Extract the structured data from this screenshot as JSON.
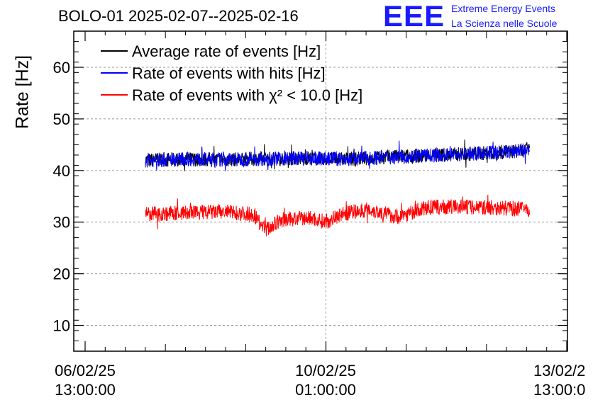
{
  "header": {
    "title": "BOLO-01 2025-02-07--2025-02-16",
    "logo_text": "EEE",
    "logo_line1": "Extreme Energy Events",
    "logo_line2": "La Scienza nelle Scuole"
  },
  "colors": {
    "average": "#000000",
    "hits": "#0000ff",
    "chi2": "#ff0000",
    "logo": "#1a1aff"
  },
  "chart_data": {
    "type": "line",
    "title": "BOLO-01 2025-02-07--2025-02-16",
    "ylabel": "Rate [Hz]",
    "xlabel": "",
    "ylim": [
      5,
      67
    ],
    "yticks": [
      10,
      20,
      30,
      40,
      50,
      60
    ],
    "grid": true,
    "legend_position": "top-left",
    "xtick_labels": [
      {
        "date": "06/02/25",
        "time": "13:00:00"
      },
      {
        "date": "10/02/25",
        "time": "01:00:00"
      },
      {
        "date": "13/02/2",
        "time": "13:00:0"
      }
    ],
    "x_range": [
      "2025-02-06 13:00",
      "2025-02-13 13:00"
    ],
    "series": [
      {
        "name": "Average rate of events [Hz]",
        "color": "#000000",
        "x": [
          "2025-02-07 10:00",
          "2025-02-08 00:00",
          "2025-02-08 14:00",
          "2025-02-09 04:00",
          "2025-02-09 18:00",
          "2025-02-10 08:00",
          "2025-02-10 22:00",
          "2025-02-11 12:00",
          "2025-02-12 02:00",
          "2025-02-12 16:00",
          "2025-02-13 00:00"
        ],
        "y": [
          42.0,
          42.2,
          42.1,
          42.3,
          42.4,
          42.2,
          42.6,
          42.9,
          43.2,
          43.6,
          44.0
        ]
      },
      {
        "name": "Rate of events with hits [Hz]",
        "color": "#0000ff",
        "x": [
          "2025-02-07 10:00",
          "2025-02-08 00:00",
          "2025-02-08 14:00",
          "2025-02-09 04:00",
          "2025-02-09 18:00",
          "2025-02-10 08:00",
          "2025-02-10 22:00",
          "2025-02-11 12:00",
          "2025-02-12 02:00",
          "2025-02-12 16:00",
          "2025-02-13 00:00"
        ],
        "y": [
          42.0,
          42.2,
          42.1,
          42.3,
          42.4,
          42.2,
          42.6,
          42.9,
          43.2,
          43.6,
          44.0
        ]
      },
      {
        "name": "Rate of events with χ² < 10.0 [Hz]",
        "color": "#ff0000",
        "x": [
          "2025-02-07 10:00",
          "2025-02-08 00:00",
          "2025-02-08 14:00",
          "2025-02-09 00:00",
          "2025-02-09 04:00",
          "2025-02-09 10:00",
          "2025-02-09 20:00",
          "2025-02-10 01:00",
          "2025-02-10 06:00",
          "2025-02-10 16:00",
          "2025-02-11 02:00",
          "2025-02-11 12:00",
          "2025-02-12 00:00",
          "2025-02-12 12:00",
          "2025-02-13 00:00"
        ],
        "y": [
          31.5,
          31.8,
          32.0,
          31.5,
          28.5,
          30.5,
          30.8,
          30.0,
          31.5,
          32.5,
          31.0,
          32.8,
          33.0,
          32.8,
          32.5
        ]
      }
    ]
  }
}
